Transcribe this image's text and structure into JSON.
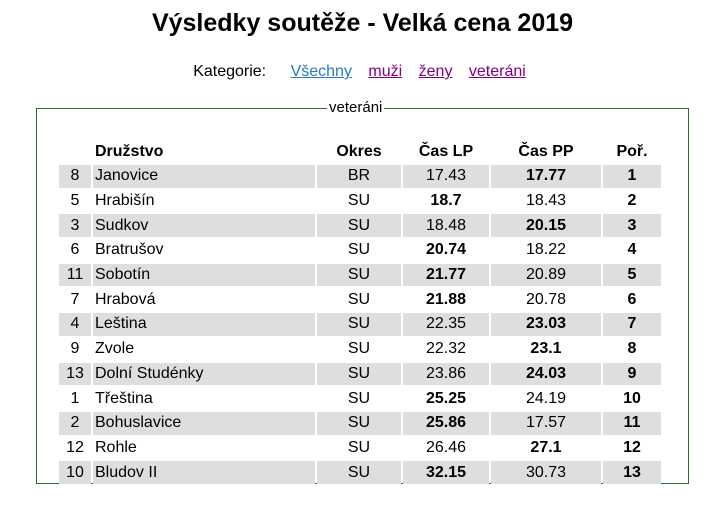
{
  "title": "Výsledky soutěže - Velká cena 2019",
  "filters": {
    "label": "Kategorie:",
    "items": [
      "Všechny",
      "muži",
      "ženy",
      "veteráni"
    ],
    "active_index": 0
  },
  "results": {
    "legend": "veteráni",
    "headers": {
      "no": "",
      "team": "Družstvo",
      "district": "Okres",
      "time_lp": "Čas LP",
      "time_pp": "Čas PP",
      "rank": "Poř."
    },
    "rows": [
      {
        "no": "8",
        "team": "Janovice",
        "district": "BR",
        "time_lp": "17.43",
        "time_pp": "17.77",
        "rank": "1",
        "best": "pp"
      },
      {
        "no": "5",
        "team": "Hrabišín",
        "district": "SU",
        "time_lp": "18.7",
        "time_pp": "18.43",
        "rank": "2",
        "best": "lp"
      },
      {
        "no": "3",
        "team": "Sudkov",
        "district": "SU",
        "time_lp": "18.48",
        "time_pp": "20.15",
        "rank": "3",
        "best": "pp"
      },
      {
        "no": "6",
        "team": "Bratrušov",
        "district": "SU",
        "time_lp": "20.74",
        "time_pp": "18.22",
        "rank": "4",
        "best": "lp"
      },
      {
        "no": "11",
        "team": "Sobotín",
        "district": "SU",
        "time_lp": "21.77",
        "time_pp": "20.89",
        "rank": "5",
        "best": "lp"
      },
      {
        "no": "7",
        "team": "Hrabová",
        "district": "SU",
        "time_lp": "21.88",
        "time_pp": "20.78",
        "rank": "6",
        "best": "lp"
      },
      {
        "no": "4",
        "team": "Leština",
        "district": "SU",
        "time_lp": "22.35",
        "time_pp": "23.03",
        "rank": "7",
        "best": "pp"
      },
      {
        "no": "9",
        "team": "Zvole",
        "district": "SU",
        "time_lp": "22.32",
        "time_pp": "23.1",
        "rank": "8",
        "best": "pp"
      },
      {
        "no": "13",
        "team": "Dolní Studénky",
        "district": "SU",
        "time_lp": "23.86",
        "time_pp": "24.03",
        "rank": "9",
        "best": "pp"
      },
      {
        "no": "1",
        "team": "Třeština",
        "district": "SU",
        "time_lp": "25.25",
        "time_pp": "24.19",
        "rank": "10",
        "best": "lp"
      },
      {
        "no": "2",
        "team": "Bohuslavice",
        "district": "SU",
        "time_lp": "25.86",
        "time_pp": "17.57",
        "rank": "11",
        "best": "lp"
      },
      {
        "no": "12",
        "team": "Rohle",
        "district": "SU",
        "time_lp": "26.46",
        "time_pp": "27.1",
        "rank": "12",
        "best": "pp"
      },
      {
        "no": "10",
        "team": "Bludov II",
        "district": "SU",
        "time_lp": "32.15",
        "time_pp": "30.73",
        "rank": "13",
        "best": "lp"
      }
    ]
  },
  "colors": {
    "link_active": "#2878c8",
    "link_visited": "#800080",
    "row_stripe": "#dedede",
    "frame_border": "#2f6b2f"
  }
}
